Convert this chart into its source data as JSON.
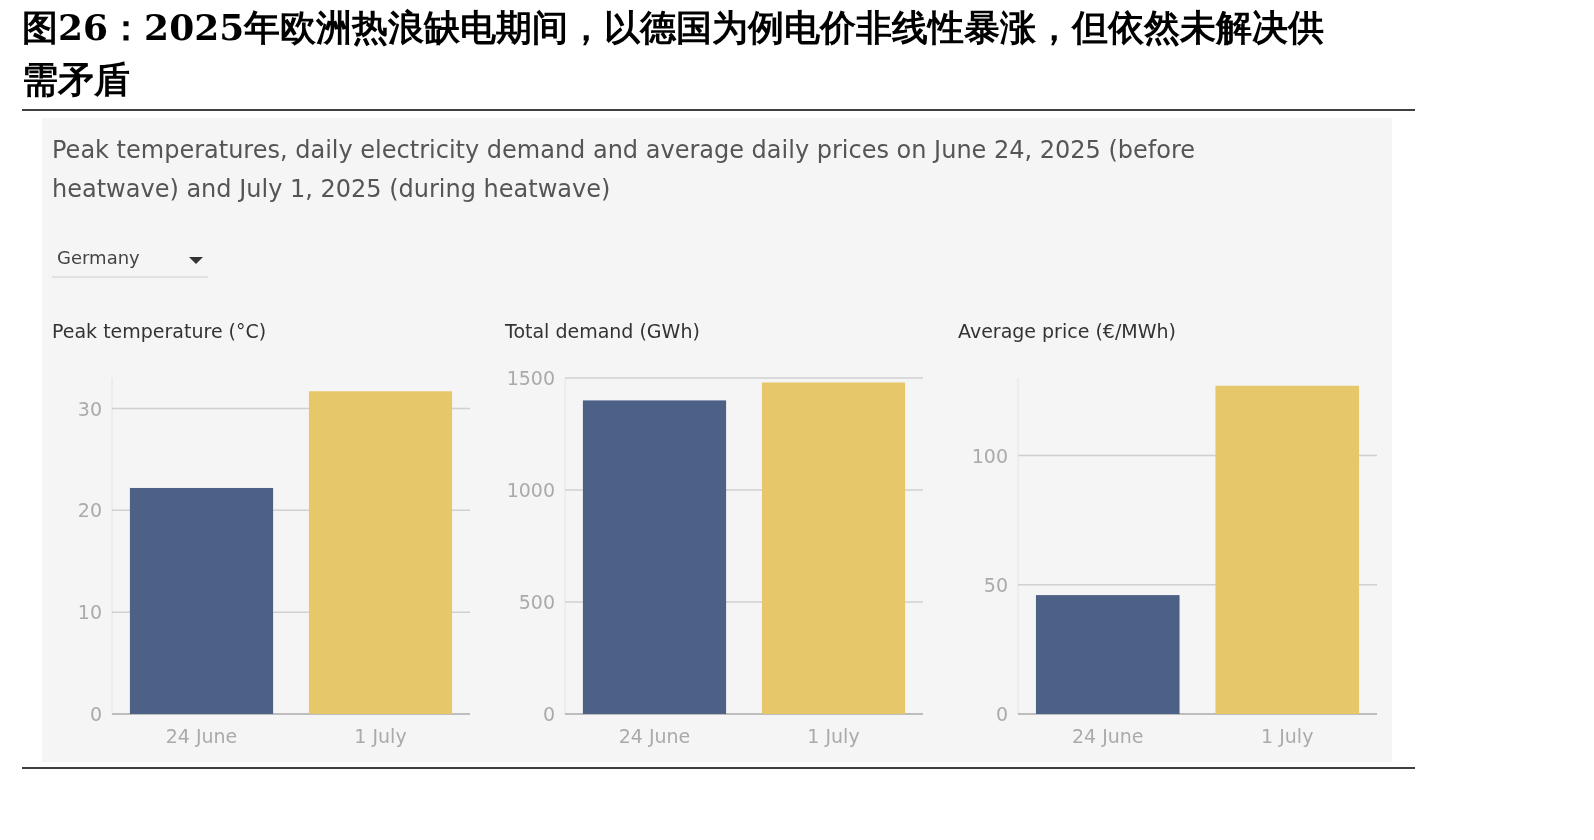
{
  "chart_data": [
    {
      "type": "other",
      "title": "图26：2025年欧洲热浪缺电期间，以德国为例电价非线性暴涨，但依然未解决供需矛盾",
      "subtitle": "Peak temperatures, daily electricity demand and average daily prices on June 24, 2025 (before heatwave) and July 1, 2025 (during heatwave)",
      "annotations": [
        "Germany"
      ]
    },
    {
      "type": "bar",
      "title": "Peak temperature (°C)",
      "categories": [
        "24 June",
        "1 July"
      ],
      "values": [
        22.2,
        31.7
      ],
      "colors": [
        "#4d6187",
        "#e6c86a"
      ],
      "ylim": [
        0,
        33
      ],
      "yticks": [
        0,
        10,
        20,
        30
      ],
      "grid": "y"
    },
    {
      "type": "bar",
      "title": "Total demand (GWh)",
      "categories": [
        "24 June",
        "1 July"
      ],
      "values": [
        1400,
        1480
      ],
      "colors": [
        "#4d6187",
        "#e6c86a"
      ],
      "ylim": [
        0,
        1500
      ],
      "yticks": [
        0,
        500,
        1000,
        1500
      ],
      "grid": "y"
    },
    {
      "type": "bar",
      "title": "Average price (€/MWh)",
      "categories": [
        "24 June",
        "1 July"
      ],
      "values": [
        46,
        127
      ],
      "colors": [
        "#4d6187",
        "#e6c86a"
      ],
      "ylim": [
        0,
        130
      ],
      "yticks": [
        0,
        50,
        100
      ],
      "grid": "y"
    }
  ]
}
